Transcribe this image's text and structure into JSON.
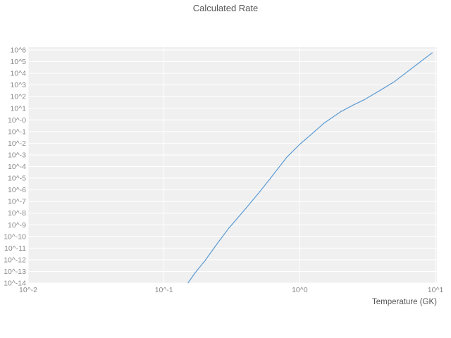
{
  "chart_data": {
    "type": "line",
    "title": "Calculated Rate",
    "xlabel": "Temperature (GK)",
    "ylabel": "",
    "x_scale": "log",
    "y_scale": "log",
    "x_range": [
      0.01,
      10
    ],
    "y_range": [
      1e-14,
      1000000.0
    ],
    "x_tick_values": [
      0.01,
      0.1,
      1,
      10
    ],
    "x_tick_labels": [
      "10^-2",
      "10^-1",
      "10^0",
      "10^1"
    ],
    "y_tick_exponents": [
      6,
      5,
      4,
      3,
      2,
      1,
      0,
      -1,
      -2,
      -3,
      -4,
      -5,
      -6,
      -7,
      -8,
      -9,
      -10,
      -11,
      -12,
      -13,
      -14
    ],
    "y_tick_labels": [
      "10^6",
      "10^5",
      "10^4",
      "10^3",
      "10^2",
      "10^1",
      "10^-0",
      "10^-1",
      "10^-2",
      "10^-3",
      "10^-4",
      "10^-5",
      "10^-6",
      "10^-7",
      "10^-8",
      "10^-9",
      "10^-10",
      "10^-11",
      "10^-12",
      "10^-13",
      "10^-14"
    ],
    "grid": true,
    "legend": "none",
    "series": [
      {
        "name": "calculated-rate",
        "color": "#5b9bd5",
        "x": [
          0.15,
          0.17,
          0.2,
          0.25,
          0.3,
          0.4,
          0.5,
          0.6,
          0.8,
          1.0,
          1.2,
          1.5,
          2.0,
          2.5,
          3.0,
          4.0,
          5.0,
          7.0,
          9.5
        ],
        "y": [
          1e-14,
          8e-14,
          8e-13,
          3e-11,
          5e-10,
          2.5e-08,
          5.5e-07,
          8e-06,
          0.0006,
          0.008,
          0.05,
          0.5,
          5,
          20,
          56,
          400,
          2000,
          40000,
          600000
        ]
      }
    ],
    "colors": {
      "panel_bg": "#f0f0f0",
      "grid": "#ffffff",
      "tick_text": "#888888",
      "title_text": "#555555",
      "figure_bg": "#ffffff"
    }
  }
}
